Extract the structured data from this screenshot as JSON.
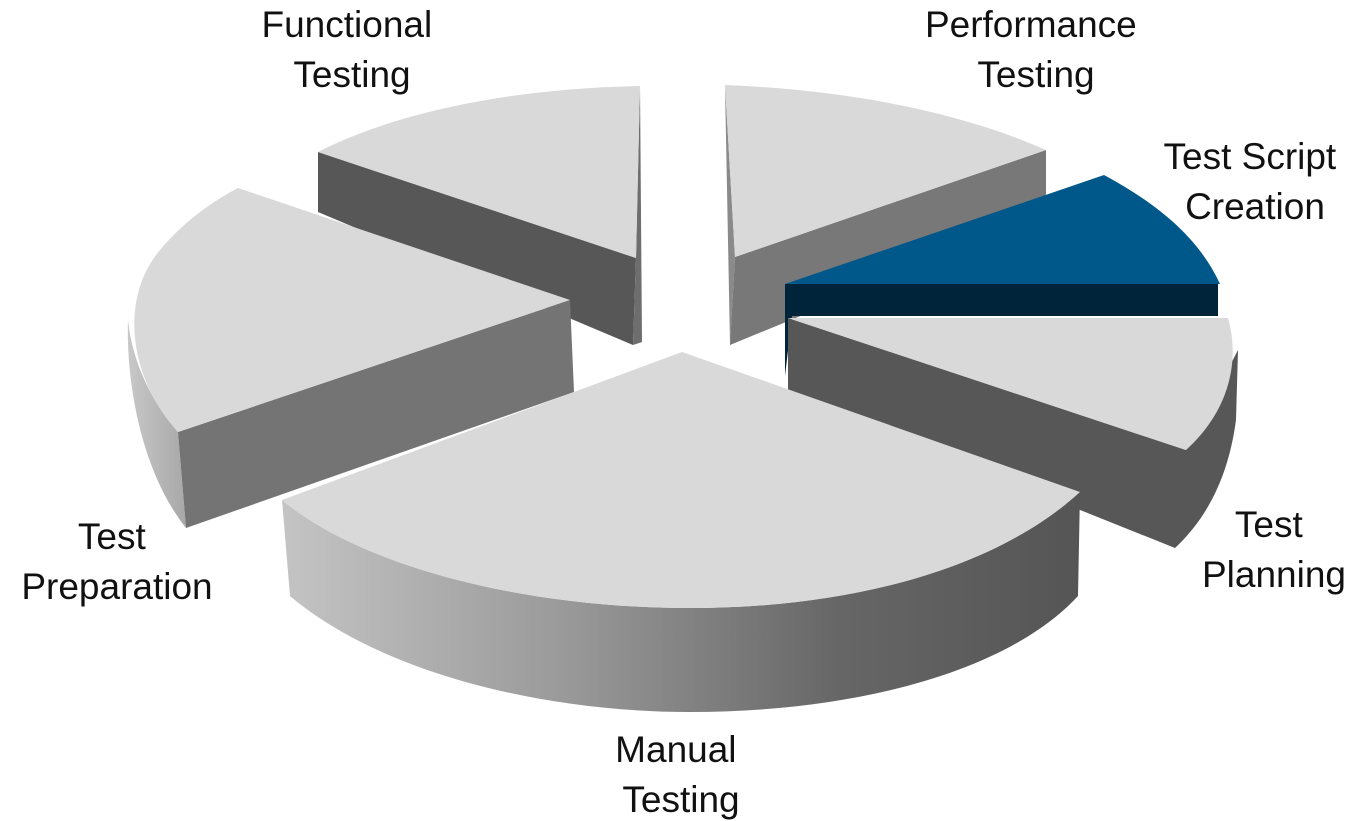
{
  "chart_data": {
    "type": "pie",
    "style": "3d-exploded",
    "legend": "none",
    "slices": [
      {
        "label_lines": [
          "Performance",
          "Testing"
        ],
        "value": 15,
        "color": "#d8d8d8"
      },
      {
        "label_lines": [
          "Test Script",
          "Creation"
        ],
        "value": 10,
        "color": "#00578a"
      },
      {
        "label_lines": [
          "Test",
          "Planning"
        ],
        "value": 10,
        "color": "#d8d8d8"
      },
      {
        "label_lines": [
          "Manual",
          "Testing"
        ],
        "value": 35,
        "color": "#d8d8d8"
      },
      {
        "label_lines": [
          "Test",
          "Preparation"
        ],
        "value": 15,
        "color": "#d8d8d8"
      },
      {
        "label_lines": [
          "Functional",
          "Testing"
        ],
        "value": 15,
        "color": "#d8d8d8"
      }
    ]
  }
}
